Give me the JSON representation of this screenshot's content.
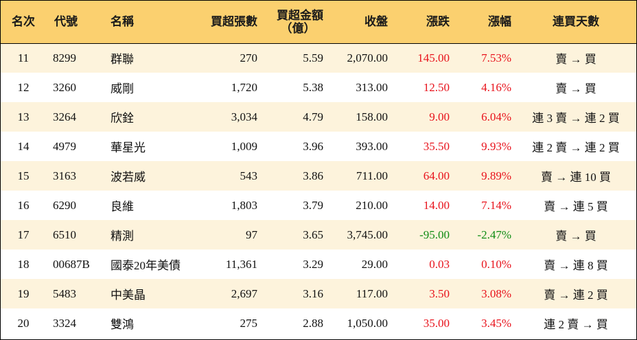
{
  "headers": {
    "rank": "名次",
    "code": "代號",
    "name": "名稱",
    "lots": "買超張數",
    "amount_line1": "買超金額",
    "amount_line2": "（億）",
    "close": "收盤",
    "change": "漲跌",
    "pct": "漲幅",
    "streak": "連買天數"
  },
  "colors": {
    "header_bg": "#fbd06f",
    "row_alt_bg": "#fdf3dc",
    "up": "#e8121b",
    "down": "#0f8c14"
  },
  "rows": [
    {
      "rank": "11",
      "code": "8299",
      "name": "群聯",
      "lots": "270",
      "amount": "5.59",
      "close": "2,070.00",
      "change": "145.00",
      "pct": "7.53%",
      "streak": "賣 → 買",
      "dir": "up"
    },
    {
      "rank": "12",
      "code": "3260",
      "name": "威剛",
      "lots": "1,720",
      "amount": "5.38",
      "close": "313.00",
      "change": "12.50",
      "pct": "4.16%",
      "streak": "賣 → 買",
      "dir": "up"
    },
    {
      "rank": "13",
      "code": "3264",
      "name": "欣銓",
      "lots": "3,034",
      "amount": "4.79",
      "close": "158.00",
      "change": "9.00",
      "pct": "6.04%",
      "streak": "連 3 賣 → 連 2 買",
      "dir": "up"
    },
    {
      "rank": "14",
      "code": "4979",
      "name": "華星光",
      "lots": "1,009",
      "amount": "3.96",
      "close": "393.00",
      "change": "35.50",
      "pct": "9.93%",
      "streak": "連 2 賣 → 連 2 買",
      "dir": "up"
    },
    {
      "rank": "15",
      "code": "3163",
      "name": "波若威",
      "lots": "543",
      "amount": "3.86",
      "close": "711.00",
      "change": "64.00",
      "pct": "9.89%",
      "streak": "賣 → 連 10 買",
      "dir": "up"
    },
    {
      "rank": "16",
      "code": "6290",
      "name": "良維",
      "lots": "1,803",
      "amount": "3.79",
      "close": "210.00",
      "change": "14.00",
      "pct": "7.14%",
      "streak": "賣 → 連 5 買",
      "dir": "up"
    },
    {
      "rank": "17",
      "code": "6510",
      "name": "精測",
      "lots": "97",
      "amount": "3.65",
      "close": "3,745.00",
      "change": "-95.00",
      "pct": "-2.47%",
      "streak": "賣 → 買",
      "dir": "down"
    },
    {
      "rank": "18",
      "code": "00687B",
      "name": "國泰20年美債",
      "lots": "11,361",
      "amount": "3.29",
      "close": "29.00",
      "change": "0.03",
      "pct": "0.10%",
      "streak": "賣 → 連 8 買",
      "dir": "up"
    },
    {
      "rank": "19",
      "code": "5483",
      "name": "中美晶",
      "lots": "2,697",
      "amount": "3.16",
      "close": "117.00",
      "change": "3.50",
      "pct": "3.08%",
      "streak": "賣 → 連 2 買",
      "dir": "up"
    },
    {
      "rank": "20",
      "code": "3324",
      "name": "雙鴻",
      "lots": "275",
      "amount": "2.88",
      "close": "1,050.00",
      "change": "35.00",
      "pct": "3.45%",
      "streak": "連 2 賣 → 買",
      "dir": "up"
    }
  ]
}
